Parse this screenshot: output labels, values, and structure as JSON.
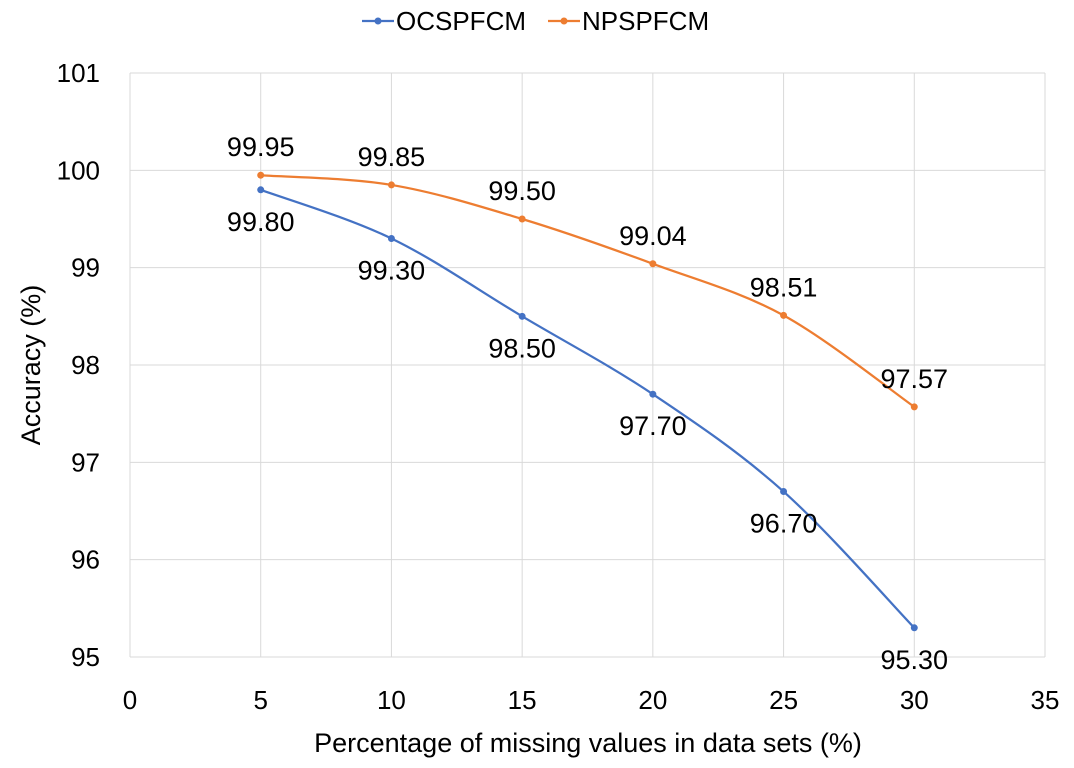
{
  "chart_data": {
    "type": "line",
    "title": "",
    "xlabel": "Percentage of missing values in data sets (%)",
    "ylabel": "Accuracy (%)",
    "xlim": [
      0,
      35
    ],
    "ylim": [
      95,
      101
    ],
    "xticks": [
      0,
      5,
      10,
      15,
      20,
      25,
      30,
      35
    ],
    "yticks": [
      95,
      96,
      97,
      98,
      99,
      100,
      101
    ],
    "grid": true,
    "legend_position": "top",
    "series": [
      {
        "name": "OCSPFCM",
        "color": "#4472c4",
        "x": [
          5,
          10,
          15,
          20,
          25,
          30
        ],
        "y": [
          99.8,
          99.3,
          98.5,
          97.7,
          96.7,
          95.3
        ],
        "labels": [
          "99.80",
          "99.30",
          "98.50",
          "97.70",
          "96.70",
          "95.30"
        ],
        "label_position": "below"
      },
      {
        "name": "NPSPFCM",
        "color": "#ed7d31",
        "x": [
          5,
          10,
          15,
          20,
          25,
          30
        ],
        "y": [
          99.95,
          99.85,
          99.5,
          99.04,
          98.51,
          97.57
        ],
        "labels": [
          "99.95",
          "99.85",
          "99.50",
          "99.04",
          "98.51",
          "97.57"
        ],
        "label_position": "above"
      }
    ]
  }
}
